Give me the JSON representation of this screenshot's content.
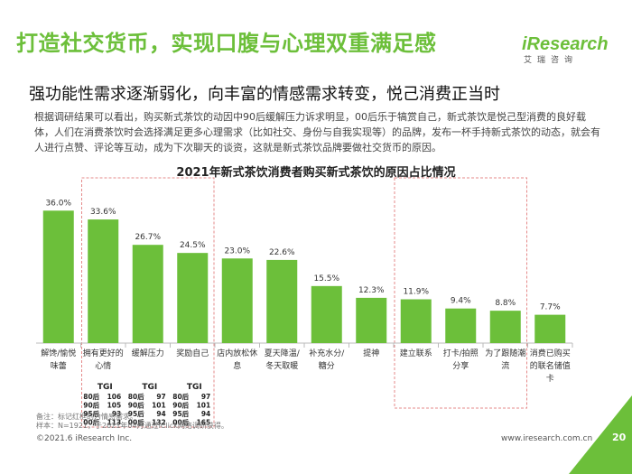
{
  "header": {
    "title": "打造社交货币，实现口腹与心理双重满足感",
    "subtitle": "强功能性需求逐渐弱化，向丰富的情感需求转变，悦己消费正当时",
    "description": "根据调研结果可以看出，购买新式茶饮的动因中90后缓解压力诉求明显，00后乐于犒赏自己，新式茶饮是悦己型消费的良好载体，人们在消费茶饮时会选择满足更多心理需求（比如社交、身份与自我实现等）的品牌，发布一杯手持新式茶饮的动态，就会有人进行点赞、评论等互动，成为下次聊天的谈资，这就是新式茶饮品牌要做社交货币的原因。"
  },
  "logo": {
    "main": "iResearch",
    "sub": "艾瑞咨询"
  },
  "chart_data": {
    "type": "bar",
    "title": "2021年新式茶饮消费者购买新式茶饮的原因占比情况",
    "categories": [
      "解馋/愉悦味蕾",
      "拥有更好的心情",
      "缓解压力",
      "奖励自己",
      "店内放松休息",
      "夏天降温/冬天取暖",
      "补充水分/糖分",
      "提神",
      "建立联系",
      "打卡/拍照分享",
      "为了跟随潮流",
      "消费已购买的联名储值卡"
    ],
    "label_lines": [
      [
        "解馋/愉悦",
        "味蕾"
      ],
      [
        "拥有更好的",
        "心情"
      ],
      [
        "缓解压力"
      ],
      [
        "奖励自己"
      ],
      [
        "店内放松休",
        "息"
      ],
      [
        "夏天降温/",
        "冬天取暖"
      ],
      [
        "补充水分/",
        "糖分"
      ],
      [
        "提神"
      ],
      [
        "建立联系"
      ],
      [
        "打卡/拍照",
        "分享"
      ],
      [
        "为了跟随潮",
        "流"
      ],
      [
        "消费已购买",
        "的联名储值",
        "卡"
      ]
    ],
    "values": [
      36.0,
      33.6,
      26.7,
      24.5,
      23.0,
      22.6,
      15.5,
      12.3,
      11.9,
      9.4,
      8.8,
      7.7
    ],
    "value_labels": [
      "36.0%",
      "33.6%",
      "26.7%",
      "24.5%",
      "23.0%",
      "22.6%",
      "15.5%",
      "12.3%",
      "11.9%",
      "9.4%",
      "8.8%",
      "7.7%"
    ],
    "ylim": [
      0,
      40
    ],
    "bar_color": "#6cbf3a",
    "highlight_groups": [
      [
        1,
        3
      ],
      [
        8,
        10
      ]
    ],
    "tgi_title": "TGI",
    "tgi": [
      {
        "index": 1,
        "rows": [
          [
            "80后",
            "106"
          ],
          [
            "90后",
            "105"
          ],
          [
            "95后",
            "93"
          ],
          [
            "00后",
            "113"
          ]
        ]
      },
      {
        "index": 2,
        "rows": [
          [
            "80后",
            "97"
          ],
          [
            "90后",
            "101"
          ],
          [
            "95后",
            "94"
          ],
          [
            "00后",
            "132"
          ]
        ]
      },
      {
        "index": 3,
        "rows": [
          [
            "80后",
            "97"
          ],
          [
            "90后",
            "101"
          ],
          [
            "95后",
            "94"
          ],
          [
            "00后",
            "165"
          ]
        ]
      }
    ]
  },
  "notes": {
    "line1": "备注：标记红框的为情感需求。",
    "line2": "样本：N=1921，于2021年04月通过iClick网络调研获得。"
  },
  "footer": {
    "copyright": "©2021.6 iResearch Inc.",
    "website": "www.iresearch.com.cn",
    "page": "20"
  },
  "colors": {
    "accent": "#6cbf3a",
    "highlight_box": "#e58a8a"
  }
}
